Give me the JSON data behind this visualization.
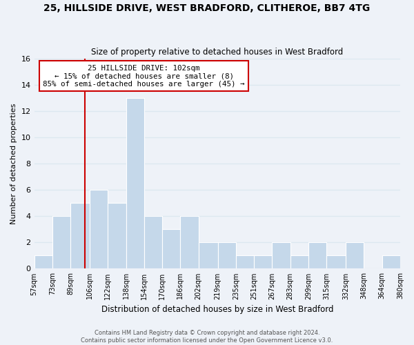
{
  "title1": "25, HILLSIDE DRIVE, WEST BRADFORD, CLITHEROE, BB7 4TG",
  "title2": "Size of property relative to detached houses in West Bradford",
  "xlabel": "Distribution of detached houses by size in West Bradford",
  "ylabel": "Number of detached properties",
  "bin_edges": [
    57,
    73,
    89,
    106,
    122,
    138,
    154,
    170,
    186,
    202,
    219,
    235,
    251,
    267,
    283,
    299,
    315,
    332,
    348,
    364,
    380
  ],
  "bin_labels": [
    "57sqm",
    "73sqm",
    "89sqm",
    "106sqm",
    "122sqm",
    "138sqm",
    "154sqm",
    "170sqm",
    "186sqm",
    "202sqm",
    "219sqm",
    "235sqm",
    "251sqm",
    "267sqm",
    "283sqm",
    "299sqm",
    "315sqm",
    "332sqm",
    "348sqm",
    "364sqm",
    "380sqm"
  ],
  "counts": [
    1,
    4,
    5,
    6,
    5,
    13,
    4,
    3,
    4,
    2,
    2,
    1,
    1,
    2,
    1,
    2,
    1,
    2,
    0,
    1
  ],
  "bar_color": "#c5d8ea",
  "vline_x": 102,
  "vline_color": "#cc0000",
  "annotation_title": "25 HILLSIDE DRIVE: 102sqm",
  "annotation_line1": "← 15% of detached houses are smaller (8)",
  "annotation_line2": "85% of semi-detached houses are larger (45) →",
  "annotation_box_color": "#ffffff",
  "annotation_box_edge": "#cc0000",
  "ylim": [
    0,
    16
  ],
  "yticks": [
    0,
    2,
    4,
    6,
    8,
    10,
    12,
    14,
    16
  ],
  "grid_color": "#dce8f0",
  "background_color": "#eef2f8",
  "footer1": "Contains HM Land Registry data © Crown copyright and database right 2024.",
  "footer2": "Contains public sector information licensed under the Open Government Licence v3.0."
}
